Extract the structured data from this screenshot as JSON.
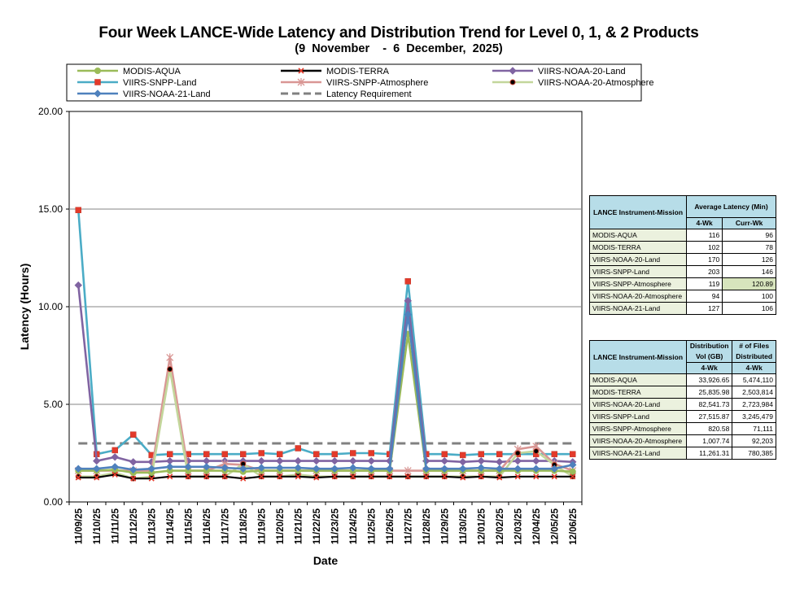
{
  "chart_data": {
    "type": "line",
    "title": "Four Week LANCE-Wide Latency and Distribution Trend for Level 0, 1, & 2 Products",
    "subtitle": "(9  November    -  6  December,  2025)",
    "xlabel": "Date",
    "ylabel": "Latency (Hours)",
    "ylim": [
      0,
      20
    ],
    "yticks": [
      "0.00",
      "5.00",
      "10.00",
      "15.00",
      "20.00"
    ],
    "grid": true,
    "legend_position": "top",
    "categories": [
      "11/09/25",
      "11/10/25",
      "11/11/25",
      "11/12/25",
      "11/13/25",
      "11/14/25",
      "11/15/25",
      "11/16/25",
      "11/17/25",
      "11/18/25",
      "11/19/25",
      "11/20/25",
      "11/21/25",
      "11/22/25",
      "11/23/25",
      "11/24/25",
      "11/25/25",
      "11/26/25",
      "11/27/25",
      "11/28/25",
      "11/29/25",
      "11/30/25",
      "12/01/25",
      "12/02/25",
      "12/03/25",
      "12/04/25",
      "12/05/25",
      "12/06/25"
    ],
    "series": [
      {
        "name": "MODIS-AQUA",
        "color": "#9bbb59",
        "marker": "circle",
        "values": [
          1.6,
          1.6,
          1.65,
          1.5,
          1.5,
          1.6,
          1.6,
          1.6,
          1.6,
          1.55,
          1.6,
          1.6,
          1.6,
          1.6,
          1.6,
          1.6,
          1.6,
          1.6,
          8.6,
          1.6,
          1.6,
          1.6,
          1.6,
          1.6,
          1.6,
          1.6,
          1.6,
          1.55
        ]
      },
      {
        "name": "MODIS-TERRA",
        "color": "#000000",
        "marker": "x",
        "values": [
          1.25,
          1.25,
          1.4,
          1.2,
          1.2,
          1.3,
          1.3,
          1.3,
          1.3,
          1.2,
          1.3,
          1.3,
          1.3,
          1.25,
          1.3,
          1.3,
          1.3,
          1.3,
          1.3,
          1.3,
          1.3,
          1.25,
          1.3,
          1.25,
          1.3,
          1.3,
          1.3,
          1.3
        ]
      },
      {
        "name": "VIIRS-NOAA-20-Land",
        "color": "#8064a2",
        "marker": "diamond",
        "values": [
          11.1,
          2.1,
          2.3,
          2.05,
          2.05,
          2.1,
          2.1,
          2.1,
          2.1,
          2.1,
          2.1,
          2.1,
          2.1,
          2.1,
          2.1,
          2.1,
          2.1,
          2.1,
          10.3,
          2.1,
          2.1,
          2.05,
          2.1,
          2.05,
          2.1,
          2.1,
          2.1,
          2.05
        ]
      },
      {
        "name": "VIIRS-SNPP-Land",
        "color": "#4bacc6",
        "marker": "square",
        "values": [
          14.95,
          2.45,
          2.65,
          3.45,
          2.4,
          2.45,
          2.45,
          2.45,
          2.45,
          2.45,
          2.5,
          2.45,
          2.75,
          2.45,
          2.45,
          2.5,
          2.5,
          2.45,
          11.3,
          2.45,
          2.45,
          2.4,
          2.45,
          2.45,
          2.45,
          2.45,
          2.45,
          2.45
        ]
      },
      {
        "name": "VIIRS-SNPP-Atmosphere",
        "color": "#d99694",
        "marker": "star",
        "values": [
          1.6,
          1.6,
          1.6,
          1.6,
          1.6,
          7.4,
          1.6,
          1.6,
          1.95,
          1.9,
          1.6,
          1.6,
          1.6,
          1.6,
          1.6,
          1.6,
          1.6,
          1.6,
          1.6,
          1.6,
          1.6,
          1.6,
          1.6,
          1.6,
          2.7,
          2.85,
          1.95,
          1.6
        ]
      },
      {
        "name": "VIIRS-NOAA-20-Atmosphere",
        "color": "#c3d69b",
        "marker": "dot",
        "values": [
          1.3,
          1.3,
          1.5,
          1.2,
          1.3,
          6.8,
          1.3,
          1.3,
          1.3,
          1.95,
          1.3,
          1.3,
          1.4,
          1.3,
          1.3,
          1.3,
          1.3,
          1.3,
          1.3,
          1.3,
          1.3,
          1.3,
          1.3,
          1.3,
          2.5,
          2.6,
          1.9,
          1.3
        ]
      },
      {
        "name": "VIIRS-NOAA-21-Land",
        "color": "#4f81bd",
        "marker": "diamond",
        "values": [
          1.7,
          1.7,
          1.8,
          1.65,
          1.7,
          1.8,
          1.8,
          1.8,
          1.75,
          1.7,
          1.75,
          1.75,
          1.75,
          1.7,
          1.7,
          1.75,
          1.7,
          1.7,
          9.6,
          1.7,
          1.7,
          1.7,
          1.75,
          1.7,
          1.7,
          1.7,
          1.7,
          1.9
        ]
      },
      {
        "name": "Latency Requirement",
        "color": "#808080",
        "dashed": true,
        "values": [
          3,
          3,
          3,
          3,
          3,
          3,
          3,
          3,
          3,
          3,
          3,
          3,
          3,
          3,
          3,
          3,
          3,
          3,
          3,
          3,
          3,
          3,
          3,
          3,
          3,
          3,
          3,
          3
        ]
      }
    ]
  },
  "latency_table": {
    "header_col1": "LANCE Instrument-Mission",
    "header_col2": "Average Latency (Min)",
    "sub_4wk": "4-Wk",
    "sub_curr": "Curr-Wk",
    "rows": [
      {
        "name": "MODIS-AQUA",
        "four_wk": "116",
        "curr_wk": "96"
      },
      {
        "name": "MODIS-TERRA",
        "four_wk": "102",
        "curr_wk": "78"
      },
      {
        "name": "VIIRS-NOAA-20-Land",
        "four_wk": "170",
        "curr_wk": "126"
      },
      {
        "name": "VIIRS-SNPP-Land",
        "four_wk": "203",
        "curr_wk": "146"
      },
      {
        "name": "VIIRS-SNPP-Atmosphere",
        "four_wk": "119",
        "curr_wk": "120.89"
      },
      {
        "name": "VIIRS-NOAA-20-Atmosphere",
        "four_wk": "94",
        "curr_wk": "100"
      },
      {
        "name": "VIIRS-NOAA-21-Land",
        "four_wk": "127",
        "curr_wk": "106"
      }
    ]
  },
  "distribution_table": {
    "header_col1": "LANCE Instrument-Mission",
    "header_col2": "Distribution Vol (GB)",
    "header_col3": "# of Files Distributed",
    "sub_4wk_a": "4-Wk",
    "sub_4wk_b": "4-Wk",
    "rows": [
      {
        "name": "MODIS-AQUA",
        "vol": "33,926.65",
        "files": "5,474,110"
      },
      {
        "name": "MODIS-TERRA",
        "vol": "25,835.98",
        "files": "2,503,814"
      },
      {
        "name": "VIIRS-NOAA-20-Land",
        "vol": "82,541.73",
        "files": "2,723,984"
      },
      {
        "name": "VIIRS-SNPP-Land",
        "vol": "27,515.87",
        "files": "3,245,479"
      },
      {
        "name": "VIIRS-SNPP-Atmosphere",
        "vol": "820.58",
        "files": "71,111"
      },
      {
        "name": "VIIRS-NOAA-20-Atmosphere",
        "vol": "1,007.74",
        "files": "92,203"
      },
      {
        "name": "VIIRS-NOAA-21-Land",
        "vol": "11,261.31",
        "files": "780,385"
      }
    ]
  }
}
